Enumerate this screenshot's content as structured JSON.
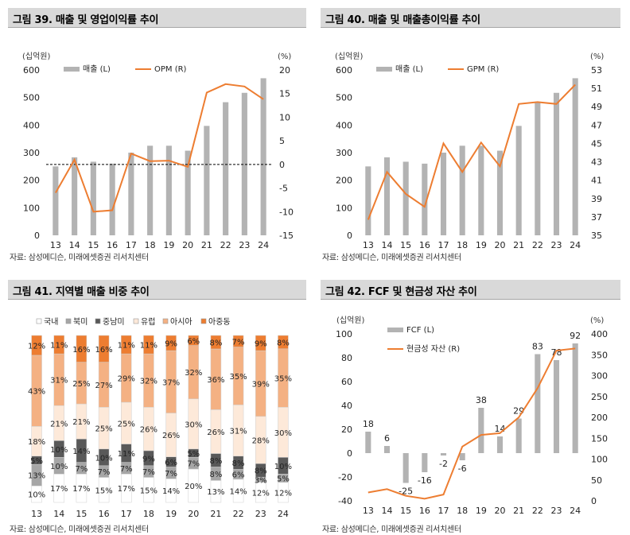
{
  "panels": [
    {
      "title": "그림 39. 매출 및 영업이익률 추이",
      "source": "자료: 삼성메디슨, 미래에셋증권 리서치센터"
    },
    {
      "title": "그림 40. 매출 및 매출총이익률 추이",
      "source": "자료: 삼성메디슨, 미래에셋증권 리서치센터"
    },
    {
      "title": "그림 41. 지역별 매출 비중 추이",
      "source": "자료: 삼성메디슨, 미래에셋증권 리서치센터"
    },
    {
      "title": "그림 42. FCF 및 현금성 자산 추이",
      "source": "자료: 삼성메디슨, 미래에셋증권 리서치센터"
    }
  ],
  "chart_data": [
    {
      "type": "bar",
      "categories": [
        "13",
        "14",
        "15",
        "16",
        "17",
        "18",
        "19",
        "20",
        "21",
        "22",
        "23",
        "24"
      ],
      "left_unit": "(십억원)",
      "right_unit": "(%)",
      "left_ylim": [
        0,
        600
      ],
      "left_ticks": [
        0,
        100,
        200,
        300,
        400,
        500,
        600
      ],
      "right_ylim": [
        -15,
        20
      ],
      "right_ticks": [
        -15,
        -10,
        -5,
        0,
        5,
        10,
        15,
        20
      ],
      "zero_line_dashed": true,
      "series": [
        {
          "name": "매출 (L)",
          "kind": "bar",
          "axis": "left",
          "color": "#b3b3b3",
          "values": [
            250,
            283,
            267,
            260,
            300,
            325,
            325,
            307,
            397,
            483,
            517,
            570
          ]
        },
        {
          "name": "OPM (R)",
          "kind": "line",
          "axis": "right",
          "color": "#ed7d31",
          "values": [
            -6.0,
            1.0,
            -10.0,
            -9.7,
            2.3,
            0.7,
            0.8,
            -0.5,
            15.2,
            17.0,
            16.5,
            13.8
          ]
        }
      ]
    },
    {
      "type": "bar",
      "categories": [
        "13",
        "14",
        "15",
        "16",
        "17",
        "18",
        "19",
        "20",
        "21",
        "22",
        "23",
        "24"
      ],
      "left_unit": "(십억원)",
      "right_unit": "(%)",
      "left_ylim": [
        0,
        600
      ],
      "left_ticks": [
        0,
        100,
        200,
        300,
        400,
        500,
        600
      ],
      "right_ylim": [
        35,
        53
      ],
      "right_ticks": [
        35,
        37,
        39,
        41,
        43,
        45,
        47,
        49,
        51,
        53
      ],
      "series": [
        {
          "name": "매출 (L)",
          "kind": "bar",
          "axis": "left",
          "color": "#b3b3b3",
          "values": [
            250,
            283,
            267,
            260,
            300,
            325,
            325,
            307,
            397,
            483,
            517,
            570
          ]
        },
        {
          "name": "GPM (R)",
          "kind": "line",
          "axis": "right",
          "color": "#ed7d31",
          "values": [
            36.7,
            41.9,
            39.5,
            38.1,
            45.0,
            41.9,
            45.1,
            42.5,
            49.3,
            49.5,
            49.3,
            51.4
          ]
        }
      ]
    },
    {
      "type": "stacked_bar_100",
      "categories": [
        "13",
        "14",
        "15",
        "16",
        "17",
        "18",
        "19",
        "20",
        "21",
        "22",
        "23",
        "24"
      ],
      "series": [
        {
          "name": "국내",
          "color": "#ffffff",
          "label_color": "#222222",
          "values": [
            10,
            17,
            17,
            15,
            17,
            15,
            14,
            20,
            13,
            14,
            12,
            12
          ]
        },
        {
          "name": "북미",
          "color": "#a6a6a6",
          "label_color": "#222222",
          "values": [
            13,
            10,
            7,
            7,
            7,
            7,
            7,
            7,
            8,
            6,
            3,
            5
          ]
        },
        {
          "name": "중남미",
          "color": "#595959",
          "label_color": "#222222",
          "values": [
            5,
            10,
            14,
            10,
            11,
            9,
            6,
            5,
            8,
            8,
            8,
            10
          ]
        },
        {
          "name": "유럽",
          "color": "#fde9d9",
          "label_color": "#222222",
          "values": [
            18,
            21,
            21,
            25,
            25,
            26,
            26,
            30,
            26,
            31,
            28,
            30
          ]
        },
        {
          "name": "아시아",
          "color": "#f4b183",
          "label_color": "#222222",
          "values": [
            43,
            31,
            25,
            27,
            29,
            32,
            37,
            32,
            36,
            35,
            39,
            35
          ]
        },
        {
          "name": "아중동",
          "color": "#ed7d31",
          "label_color": "#222222",
          "values": [
            12,
            11,
            16,
            16,
            11,
            11,
            9,
            6,
            8,
            7,
            9,
            8
          ]
        }
      ]
    },
    {
      "type": "bar",
      "categories": [
        "13",
        "14",
        "15",
        "16",
        "17",
        "18",
        "19",
        "20",
        "21",
        "22",
        "23",
        "24"
      ],
      "left_unit": "(십억원)",
      "right_unit": "(%)",
      "left_ylim": [
        -40,
        100
      ],
      "left_ticks": [
        -40,
        -20,
        0,
        20,
        40,
        60,
        80,
        100
      ],
      "right_ylim": [
        0,
        400
      ],
      "right_ticks": [
        0,
        50,
        100,
        150,
        200,
        250,
        300,
        350,
        400
      ],
      "series": [
        {
          "name": "FCF (L)",
          "kind": "bar",
          "axis": "left",
          "color": "#b3b3b3",
          "values": [
            18,
            6,
            -25,
            -16,
            -2,
            -6,
            38,
            14,
            29,
            83,
            78,
            92
          ],
          "labels": [
            "18",
            "6",
            "-25",
            "-16",
            "-2",
            "-6",
            "38",
            "14",
            "29",
            "83",
            "78",
            "92"
          ]
        },
        {
          "name": "현금성 자산 (R)",
          "kind": "line",
          "axis": "right",
          "color": "#ed7d31",
          "values": [
            20,
            28,
            12,
            5,
            15,
            130,
            158,
            162,
            200,
            270,
            360,
            365
          ]
        }
      ]
    }
  ]
}
